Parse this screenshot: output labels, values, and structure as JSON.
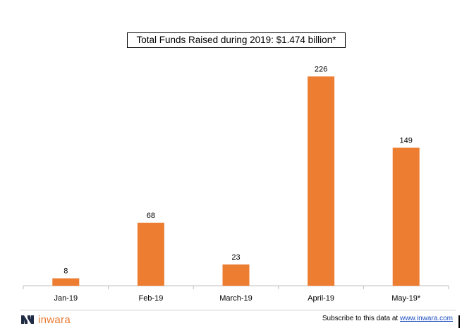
{
  "chart_data": {
    "type": "bar",
    "title": "Total Funds Raised during 2019: $1.474 billion*",
    "categories": [
      "Jan-19",
      "Feb-19",
      "March-19",
      "April-19",
      "May-19*"
    ],
    "values": [
      8,
      68,
      23,
      226,
      149
    ],
    "xlabel": "",
    "ylabel": "",
    "ylim": [
      0,
      240
    ],
    "grid": false,
    "bar_color": "#ED7D31"
  },
  "footer": {
    "logo_text": "inwara",
    "subscribe_text": "Subscribe to this data at ",
    "subscribe_link": "www.inwara.com"
  },
  "colors": {
    "accent": "#ED7D31",
    "logo_dark": "#1F2A44",
    "link": "#1F4FBF"
  }
}
